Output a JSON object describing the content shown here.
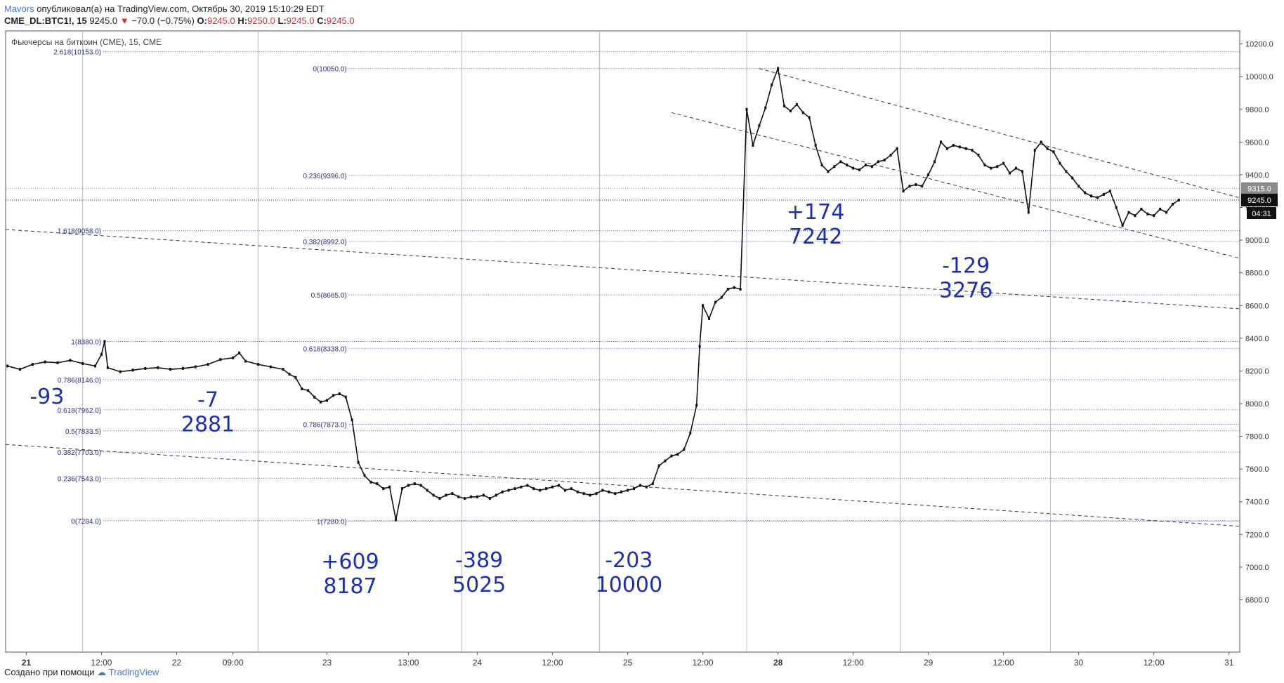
{
  "header": {
    "author": "Mavors",
    "published": "опубликовал(а) на TradingView.com, Октябрь 30, 2019 15:10:29 EDT",
    "symbol": "CME_DL:BTC1!, 15",
    "last": "9245.0",
    "arrow": "▼",
    "change": "−70.0 (−0.75%)",
    "o_label": "O:",
    "o": "9245.0",
    "h_label": "H:",
    "h": "9250.0",
    "l_label": "L:",
    "l": "9245.0",
    "c_label": "C:",
    "c": "9245.0"
  },
  "footer": {
    "created_with": "Создано при помощи",
    "brand": "TradingView"
  },
  "chart_data": {
    "type": "line",
    "title": "Фьючерсы на биткоин (CME), 15, CME",
    "ylim": [
      6480,
      10280
    ],
    "y_ticks": [
      "6800.0",
      "7000.0",
      "7200.0",
      "7400.0",
      "7600.0",
      "7800.0",
      "8000.0",
      "8200.0",
      "8400.0",
      "8600.0",
      "8800.0",
      "9000.0",
      "9200.0",
      "9400.0",
      "9600.0",
      "9800.0",
      "10000.0",
      "10200.0"
    ],
    "x_ticks": [
      {
        "label": "21",
        "bold": true,
        "t": 0
      },
      {
        "label": "12:00",
        "t": 12
      },
      {
        "label": "22",
        "t": 24
      },
      {
        "label": "09:00",
        "t": 33
      },
      {
        "label": "23",
        "t": 48
      },
      {
        "label": "13:00",
        "t": 61
      },
      {
        "label": "24",
        "t": 72
      },
      {
        "label": "12:00",
        "t": 84
      },
      {
        "label": "25",
        "t": 96
      },
      {
        "label": "12:00",
        "t": 108
      },
      {
        "label": "28",
        "bold": true,
        "t": 120
      },
      {
        "label": "12:00",
        "t": 132
      },
      {
        "label": "29",
        "t": 144
      },
      {
        "label": "12:00",
        "t": 156
      },
      {
        "label": "30",
        "t": 168
      },
      {
        "label": "12:00",
        "t": 180
      },
      {
        "label": "31",
        "t": 192
      }
    ],
    "x_range": [
      -3.3,
      193.6
    ],
    "sessions_t": [
      9,
      37,
      69.5,
      91.5,
      115,
      139.5,
      163.5
    ],
    "price_series": [
      [
        -3,
        8230
      ],
      [
        -1,
        8210
      ],
      [
        1,
        8240
      ],
      [
        3,
        8255
      ],
      [
        5,
        8250
      ],
      [
        7,
        8265
      ],
      [
        9,
        8245
      ],
      [
        11,
        8230
      ],
      [
        12,
        8300
      ],
      [
        12.5,
        8380
      ],
      [
        13,
        8220
      ],
      [
        15,
        8195
      ],
      [
        17,
        8205
      ],
      [
        19,
        8215
      ],
      [
        21,
        8220
      ],
      [
        23,
        8210
      ],
      [
        25,
        8215
      ],
      [
        27,
        8225
      ],
      [
        29,
        8240
      ],
      [
        31,
        8270
      ],
      [
        33,
        8280
      ],
      [
        34,
        8310
      ],
      [
        35,
        8260
      ],
      [
        37,
        8240
      ],
      [
        39,
        8225
      ],
      [
        41,
        8210
      ],
      [
        42,
        8180
      ],
      [
        43,
        8160
      ],
      [
        44,
        8090
      ],
      [
        45,
        8080
      ],
      [
        46,
        8040
      ],
      [
        47,
        8010
      ],
      [
        48,
        8020
      ],
      [
        49,
        8050
      ],
      [
        50,
        8060
      ],
      [
        51,
        8040
      ],
      [
        52,
        7900
      ],
      [
        53,
        7640
      ],
      [
        54,
        7560
      ],
      [
        55,
        7520
      ],
      [
        56,
        7510
      ],
      [
        57,
        7480
      ],
      [
        58,
        7490
      ],
      [
        59,
        7290
      ],
      [
        60,
        7480
      ],
      [
        61,
        7500
      ],
      [
        62,
        7510
      ],
      [
        63,
        7500
      ],
      [
        64,
        7470
      ],
      [
        65,
        7440
      ],
      [
        66,
        7420
      ],
      [
        67,
        7440
      ],
      [
        68,
        7450
      ],
      [
        69,
        7430
      ],
      [
        70,
        7420
      ],
      [
        71,
        7430
      ],
      [
        72,
        7430
      ],
      [
        73,
        7440
      ],
      [
        74,
        7420
      ],
      [
        75,
        7440
      ],
      [
        76,
        7460
      ],
      [
        77,
        7470
      ],
      [
        78,
        7480
      ],
      [
        79,
        7490
      ],
      [
        80,
        7500
      ],
      [
        81,
        7480
      ],
      [
        82,
        7470
      ],
      [
        83,
        7480
      ],
      [
        84,
        7490
      ],
      [
        85,
        7500
      ],
      [
        86,
        7470
      ],
      [
        87,
        7480
      ],
      [
        88,
        7460
      ],
      [
        89,
        7450
      ],
      [
        90,
        7440
      ],
      [
        91,
        7450
      ],
      [
        92,
        7470
      ],
      [
        93,
        7460
      ],
      [
        94,
        7450
      ],
      [
        95,
        7460
      ],
      [
        96,
        7470
      ],
      [
        97,
        7480
      ],
      [
        98,
        7500
      ],
      [
        99,
        7490
      ],
      [
        100,
        7510
      ],
      [
        101,
        7620
      ],
      [
        102,
        7650
      ],
      [
        103,
        7680
      ],
      [
        104,
        7690
      ],
      [
        105,
        7720
      ],
      [
        106,
        7820
      ],
      [
        107,
        7990
      ],
      [
        107.5,
        8350
      ],
      [
        108,
        8600
      ],
      [
        109,
        8520
      ],
      [
        110,
        8620
      ],
      [
        111,
        8650
      ],
      [
        112,
        8700
      ],
      [
        113,
        8710
      ],
      [
        114,
        8700
      ],
      [
        115,
        9800
      ],
      [
        116,
        9580
      ],
      [
        117,
        9700
      ],
      [
        118,
        9810
      ],
      [
        119,
        9950
      ],
      [
        120,
        10050
      ],
      [
        121,
        9820
      ],
      [
        122,
        9790
      ],
      [
        123,
        9830
      ],
      [
        124,
        9780
      ],
      [
        125,
        9750
      ],
      [
        126,
        9580
      ],
      [
        127,
        9460
      ],
      [
        128,
        9420
      ],
      [
        129,
        9450
      ],
      [
        130,
        9480
      ],
      [
        131,
        9460
      ],
      [
        132,
        9440
      ],
      [
        133,
        9430
      ],
      [
        134,
        9460
      ],
      [
        135,
        9450
      ],
      [
        136,
        9480
      ],
      [
        137,
        9490
      ],
      [
        138,
        9520
      ],
      [
        139,
        9560
      ],
      [
        140,
        9300
      ],
      [
        141,
        9330
      ],
      [
        142,
        9340
      ],
      [
        143,
        9330
      ],
      [
        144,
        9400
      ],
      [
        145,
        9480
      ],
      [
        146,
        9600
      ],
      [
        147,
        9560
      ],
      [
        148,
        9580
      ],
      [
        149,
        9570
      ],
      [
        150,
        9560
      ],
      [
        151,
        9550
      ],
      [
        152,
        9520
      ],
      [
        153,
        9460
      ],
      [
        154,
        9440
      ],
      [
        155,
        9450
      ],
      [
        156,
        9470
      ],
      [
        157,
        9410
      ],
      [
        158,
        9440
      ],
      [
        159,
        9420
      ],
      [
        160,
        9170
      ],
      [
        161,
        9550
      ],
      [
        162,
        9600
      ],
      [
        163,
        9560
      ],
      [
        164,
        9540
      ],
      [
        165,
        9470
      ],
      [
        166,
        9420
      ],
      [
        167,
        9380
      ],
      [
        168,
        9330
      ],
      [
        169,
        9290
      ],
      [
        170,
        9270
      ],
      [
        171,
        9260
      ],
      [
        172,
        9280
      ],
      [
        173,
        9300
      ],
      [
        174,
        9200
      ],
      [
        175,
        9090
      ],
      [
        176,
        9170
      ],
      [
        177,
        9150
      ],
      [
        178,
        9190
      ],
      [
        179,
        9160
      ],
      [
        180,
        9150
      ],
      [
        181,
        9190
      ],
      [
        182,
        9170
      ],
      [
        183,
        9220
      ],
      [
        184,
        9245
      ]
    ],
    "trend_lines": [
      {
        "t1": -3.3,
        "p1": 9065,
        "t2": 193.6,
        "p2": 8580
      },
      {
        "t1": -3.3,
        "p1": 7750,
        "t2": 193.6,
        "p2": 7250
      },
      {
        "t1": 117,
        "p1": 10050,
        "t2": 193.6,
        "p2": 9260
      },
      {
        "t1": 103,
        "p1": 9780,
        "t2": 193.6,
        "p2": 8890
      }
    ],
    "fib_sets": [
      {
        "levels": [
          {
            "label": "2.618(10153.0)",
            "price": 10153
          },
          {
            "label": "1.618(9058.0)",
            "price": 9058
          },
          {
            "label": "1(8380.0)",
            "price": 8380
          },
          {
            "label": "0.786(8146.0)",
            "price": 8146
          },
          {
            "label": "0.618(7962.0)",
            "price": 7962
          },
          {
            "label": "0.5(7833.5)",
            "price": 7833.5
          },
          {
            "label": "0.382(7703.0)",
            "price": 7703
          },
          {
            "label": "0.236(7543.0)",
            "price": 7543
          },
          {
            "label": "0(7284.0)",
            "price": 7284
          }
        ],
        "t_start": 12.3
      },
      {
        "levels": [
          {
            "label": "0(10050.0)",
            "price": 10050
          },
          {
            "label": "0.236(9396.0)",
            "price": 9396
          },
          {
            "label": "0.382(8992.0)",
            "price": 8992
          },
          {
            "label": "0.5(8665.0)",
            "price": 8665
          },
          {
            "label": "0.618(8338.0)",
            "price": 8338
          },
          {
            "label": "0.786(7873.0)",
            "price": 7873
          },
          {
            "label": "1(7280.0)",
            "price": 7280
          }
        ],
        "t_start": 51.5
      }
    ],
    "last_price": {
      "value": "9245.0",
      "price": 9245,
      "countdown": "04:31"
    },
    "prev_price": {
      "value": "9315.0",
      "price": 9315
    },
    "annotations": [
      {
        "line1": "-93",
        "line2": "",
        "t": 3.3,
        "price": 8000
      },
      {
        "line1": "-7",
        "line2": "2881",
        "t": 29,
        "price": 7980
      },
      {
        "line1": "+609",
        "line2": "8187",
        "t": 51.7,
        "price": 6990
      },
      {
        "line1": "-389",
        "line2": "5025",
        "t": 72.3,
        "price": 7000
      },
      {
        "line1": "-203",
        "line2": "10000",
        "t": 96.2,
        "price": 7000
      },
      {
        "line1": "+174",
        "line2": "7242",
        "t": 126,
        "price": 9130
      },
      {
        "line1": "-129",
        "line2": "3276",
        "t": 150,
        "price": 8800
      }
    ]
  }
}
